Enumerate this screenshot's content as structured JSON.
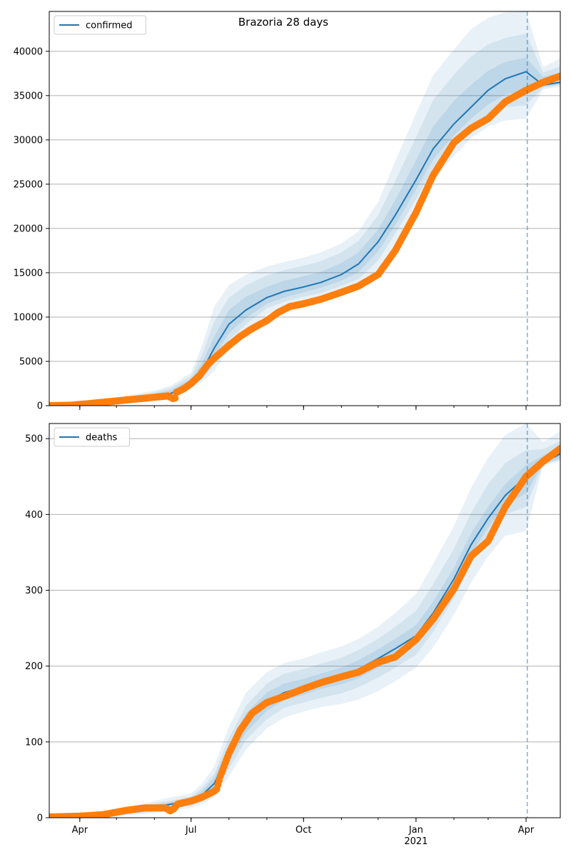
{
  "title": "Brazoria 28 days",
  "colors": {
    "model_line": "#1f77b4",
    "band": "#1f77b4",
    "observed": "#ff7f0e",
    "grid": "#b0b0b0",
    "cutoff": "#1f77b4"
  },
  "chart_data": [
    {
      "type": "line",
      "title": "Brazoria 28 days",
      "legend": {
        "label": "confirmed",
        "placement": "top-left"
      },
      "grid": "y",
      "xlim": [
        "2020-03-07",
        "2021-04-29"
      ],
      "ylim": [
        0,
        44500
      ],
      "x_ticks": [
        {
          "date": "2020-04-01",
          "label": "Apr"
        },
        {
          "date": "2020-07-01",
          "label": "Jul"
        },
        {
          "date": "2020-10-01",
          "label": "Oct"
        },
        {
          "date": "2021-01-01",
          "label": "Jan",
          "sub": "2021"
        },
        {
          "date": "2021-04-01",
          "label": "Apr"
        }
      ],
      "y_ticks": [
        0,
        5000,
        10000,
        15000,
        20000,
        25000,
        30000,
        35000,
        40000
      ],
      "forecast_start": "2021-04-02",
      "model": {
        "dates": [
          "2020-03-07",
          "2020-04-01",
          "2020-05-01",
          "2020-06-01",
          "2020-06-15",
          "2020-07-01",
          "2020-07-10",
          "2020-07-20",
          "2020-08-01",
          "2020-08-15",
          "2020-09-01",
          "2020-09-15",
          "2020-10-01",
          "2020-10-15",
          "2020-11-01",
          "2020-11-15",
          "2020-12-01",
          "2020-12-15",
          "2021-01-01",
          "2021-01-15",
          "2021-02-01",
          "2021-02-15",
          "2021-03-01",
          "2021-03-15",
          "2021-04-01",
          "2021-04-15",
          "2021-04-29"
        ],
        "median": [
          0,
          80,
          500,
          1000,
          1400,
          2500,
          3900,
          6500,
          9200,
          10800,
          12200,
          12900,
          13400,
          13900,
          14800,
          16000,
          18500,
          21500,
          25500,
          29000,
          31800,
          33700,
          35600,
          36900,
          37700,
          36200,
          36500
        ],
        "bands": [
          {
            "lower": [
              0,
              40,
              300,
              700,
              1000,
              1900,
              2700,
              3900,
              6500,
              8400,
              10300,
              11000,
              11700,
              12100,
              12700,
              13400,
              15200,
              18200,
              22000,
              25500,
              28200,
              30200,
              31500,
              32200,
              32400,
              35700,
              36000
            ],
            "upper": [
              0,
              200,
              900,
              1700,
              2300,
              3700,
              6800,
              11200,
              13600,
              14800,
              15700,
              16200,
              16700,
              17300,
              18300,
              19700,
              23000,
              27600,
              33000,
              37300,
              40200,
              42500,
              43800,
              44400,
              44500,
              38200,
              39200
            ]
          },
          {
            "lower": [
              0,
              55,
              360,
              800,
              1120,
              2080,
              3050,
              4700,
              7400,
              9200,
              11000,
              11700,
              12300,
              12700,
              13500,
              14300,
              16400,
              19400,
              23300,
              26800,
              29500,
              31400,
              32800,
              33700,
              33900,
              35900,
              36200
            ],
            "upper": [
              0,
              160,
              760,
              1500,
              2020,
              3350,
              5800,
              9500,
              12200,
              13600,
              14700,
              15300,
              15800,
              16300,
              17300,
              18600,
              21500,
              25400,
              30300,
              34500,
              37400,
              39400,
              40800,
              41500,
              42000,
              37600,
              38300
            ]
          },
          {
            "lower": [
              0,
              65,
              420,
              880,
              1230,
              2250,
              3400,
              5500,
              8200,
              9900,
              11500,
              12200,
              12800,
              13300,
              14100,
              15100,
              17400,
              20400,
              24400,
              27800,
              30500,
              32400,
              34000,
              35100,
              35600,
              36000,
              36300
            ],
            "upper": [
              0,
              120,
              640,
              1300,
              1780,
              3000,
              4800,
              7800,
              10800,
              12300,
              13400,
              14100,
              14600,
              15100,
              16100,
              17300,
              19900,
              23200,
              27700,
              31500,
              34400,
              36200,
              37800,
              38800,
              39300,
              37100,
              37600
            ]
          }
        ]
      },
      "observed": {
        "dates": [
          "2020-03-07",
          "2020-03-25",
          "2020-04-10",
          "2020-04-25",
          "2020-05-10",
          "2020-05-25",
          "2020-06-05",
          "2020-06-12",
          "2020-06-16",
          "2020-06-18",
          "2020-06-19",
          "2020-06-25",
          "2020-07-01",
          "2020-07-08",
          "2020-07-15",
          "2020-07-22",
          "2020-08-01",
          "2020-08-10",
          "2020-08-20",
          "2020-09-01",
          "2020-09-10",
          "2020-09-20",
          "2020-10-01",
          "2020-10-15",
          "2020-11-01",
          "2020-11-15",
          "2020-12-01",
          "2020-12-15",
          "2021-01-01",
          "2021-01-15",
          "2021-02-01",
          "2021-02-15",
          "2021-03-01",
          "2021-03-15",
          "2021-04-01",
          "2021-04-15",
          "2021-04-29"
        ],
        "values": [
          0,
          50,
          250,
          450,
          650,
          850,
          1000,
          1100,
          800,
          850,
          1500,
          1900,
          2500,
          3400,
          4700,
          5600,
          6800,
          7800,
          8700,
          9600,
          10500,
          11200,
          11500,
          12000,
          12800,
          13500,
          14800,
          17500,
          21800,
          26000,
          29700,
          31300,
          32400,
          34300,
          35600,
          36500,
          37200
        ]
      }
    },
    {
      "type": "line",
      "legend": {
        "label": "deaths",
        "placement": "top-left"
      },
      "grid": "y",
      "xlim": [
        "2020-03-07",
        "2021-04-29"
      ],
      "ylim": [
        0,
        520
      ],
      "x_ticks": [
        {
          "date": "2020-04-01",
          "label": "Apr"
        },
        {
          "date": "2020-07-01",
          "label": "Jul"
        },
        {
          "date": "2020-10-01",
          "label": "Oct"
        },
        {
          "date": "2021-01-01",
          "label": "Jan",
          "sub": "2021"
        },
        {
          "date": "2021-04-01",
          "label": "Apr"
        }
      ],
      "y_ticks": [
        0,
        100,
        200,
        300,
        400,
        500
      ],
      "forecast_start": "2021-04-02",
      "model": {
        "dates": [
          "2020-03-07",
          "2020-04-01",
          "2020-05-01",
          "2020-06-01",
          "2020-06-15",
          "2020-07-01",
          "2020-07-10",
          "2020-07-20",
          "2020-08-01",
          "2020-08-15",
          "2020-09-01",
          "2020-09-15",
          "2020-10-01",
          "2020-10-15",
          "2020-11-01",
          "2020-11-15",
          "2020-12-01",
          "2020-12-15",
          "2021-01-01",
          "2021-01-15",
          "2021-02-01",
          "2021-02-15",
          "2021-03-01",
          "2021-03-15",
          "2021-04-01",
          "2021-04-15",
          "2021-04-29"
        ],
        "median": [
          0,
          2,
          6,
          14,
          18,
          22,
          30,
          45,
          85,
          125,
          152,
          165,
          172,
          180,
          187,
          196,
          210,
          223,
          240,
          270,
          315,
          360,
          395,
          425,
          450,
          468,
          480
        ],
        "bands": [
          {
            "lower": [
              0,
              0,
              2,
              6,
              9,
              13,
              18,
              27,
              55,
              90,
              118,
              132,
              140,
              146,
              150,
              156,
              167,
              180,
              198,
              225,
              268,
              310,
              345,
              372,
              378,
              465,
              470
            ],
            "upper": [
              0,
              5,
              11,
              22,
              27,
              32,
              45,
              68,
              120,
              165,
              192,
              204,
              210,
              218,
              226,
              236,
              252,
              270,
              295,
              335,
              385,
              435,
              475,
              505,
              520,
              495,
              510
            ]
          },
          {
            "lower": [
              0,
              1,
              3,
              8,
              12,
              16,
              21,
              32,
              65,
              103,
              130,
              145,
              152,
              158,
              164,
              172,
              185,
              198,
              215,
              245,
              290,
              335,
              370,
              400,
              410,
              466,
              472
            ],
            "upper": [
              0,
              4,
              9,
              19,
              23,
              28,
              39,
              58,
              105,
              148,
              177,
              190,
              196,
              203,
              211,
              221,
              236,
              252,
              273,
              308,
              355,
              402,
              440,
              468,
              485,
              486,
              497
            ]
          },
          {
            "lower": [
              0,
              1,
              4,
              10,
              14,
              19,
              25,
              38,
              74,
              113,
              141,
              155,
              162,
              170,
              176,
              184,
              198,
              212,
              228,
              258,
              302,
              348,
              383,
              412,
              428,
              467,
              474
            ],
            "upper": [
              0,
              3,
              8,
              17,
              21,
              25,
              35,
              53,
              96,
              138,
              165,
              177,
              183,
              190,
              198,
              208,
              222,
              236,
              254,
              285,
              330,
              375,
              410,
              440,
              465,
              478,
              488
            ]
          }
        ]
      },
      "observed": {
        "dates": [
          "2020-03-07",
          "2020-04-01",
          "2020-04-20",
          "2020-05-10",
          "2020-05-25",
          "2020-06-10",
          "2020-06-14",
          "2020-06-17",
          "2020-06-20",
          "2020-07-01",
          "2020-07-10",
          "2020-07-20",
          "2020-07-22",
          "2020-07-25",
          "2020-08-01",
          "2020-08-10",
          "2020-08-20",
          "2020-09-01",
          "2020-09-15",
          "2020-10-01",
          "2020-10-15",
          "2020-11-01",
          "2020-11-15",
          "2020-12-01",
          "2020-12-15",
          "2021-01-01",
          "2021-01-15",
          "2021-02-01",
          "2021-02-15",
          "2021-03-01",
          "2021-03-15",
          "2021-04-01",
          "2021-04-15",
          "2021-04-29"
        ],
        "values": [
          1,
          2,
          4,
          10,
          13,
          13,
          9,
          12,
          18,
          22,
          27,
          35,
          38,
          55,
          85,
          115,
          138,
          152,
          160,
          170,
          178,
          186,
          192,
          205,
          212,
          235,
          262,
          302,
          345,
          365,
          410,
          450,
          470,
          487
        ]
      }
    }
  ]
}
